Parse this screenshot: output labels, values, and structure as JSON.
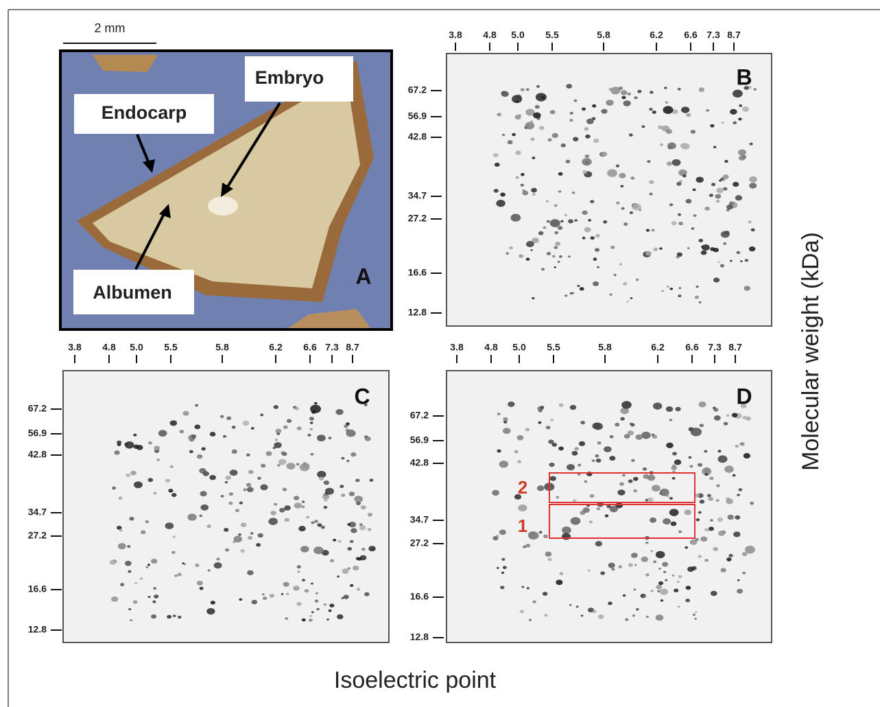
{
  "scale_bar": "2 mm",
  "panel_a": {
    "letter": "A",
    "labels": {
      "endocarp": "Endocarp",
      "embryo": "Embryo",
      "albumen": "Albumen"
    }
  },
  "panels": [
    {
      "letter": "B",
      "pi_ticks": [
        "3.8",
        "4.8",
        "5.0",
        "5.5",
        "5.8",
        "6.2",
        "6.6",
        "7.3",
        "8.7"
      ],
      "mw_ticks": [
        "67.2",
        "56.9",
        "42.8",
        "34.7",
        "27.2",
        "16.6",
        "12.8"
      ]
    },
    {
      "letter": "C",
      "pi_ticks": [
        "3.8",
        "4.8",
        "5.0",
        "5.5",
        "5.8",
        "6.2",
        "6.6",
        "7.3",
        "8.7"
      ],
      "mw_ticks": [
        "67.2",
        "56.9",
        "42.8",
        "34.7",
        "27.2",
        "16.6",
        "12.8"
      ]
    },
    {
      "letter": "D",
      "pi_ticks": [
        "3.8",
        "4.8",
        "5.0",
        "5.5",
        "5.8",
        "6.2",
        "6.6",
        "7.3",
        "8.7"
      ],
      "mw_ticks": [
        "67.2",
        "56.9",
        "42.8",
        "34.7",
        "27.2",
        "16.6",
        "12.8"
      ],
      "box_labels": [
        "2",
        "1"
      ]
    }
  ],
  "y_axis_label": "Molecular weight (kDa)",
  "x_axis_label": "Isoelectric point"
}
